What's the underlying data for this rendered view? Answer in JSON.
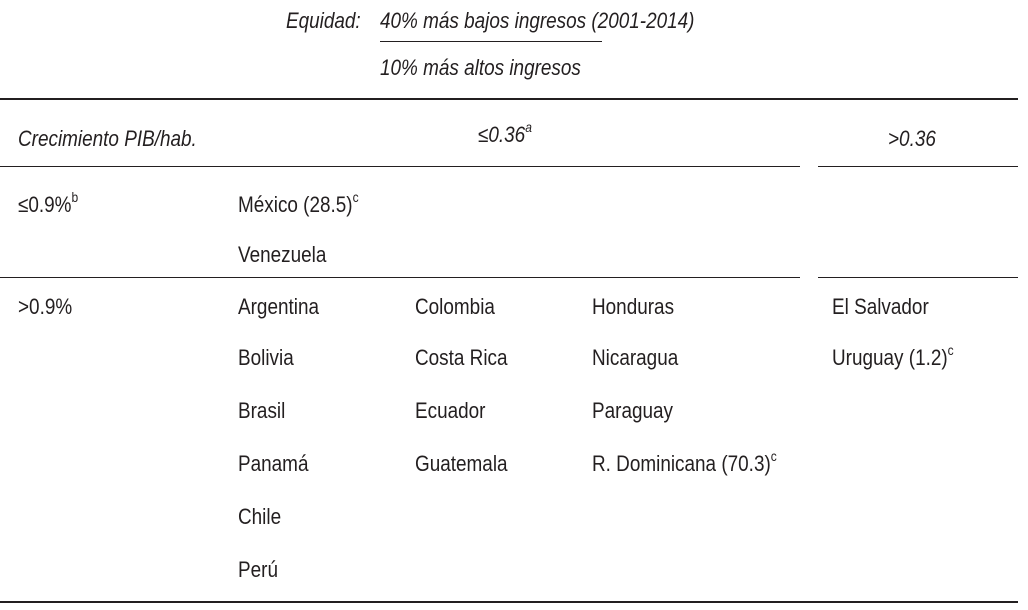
{
  "header": {
    "eq_label": "Equidad:",
    "numerator": "40% más bajos ingresos (2001-2014)",
    "denominator": "10% más altos ingresos"
  },
  "columns": {
    "row_header": "Crecimiento PIB/hab.",
    "col1": "≤0.36",
    "col1_note": "a",
    "col2": ">0.36"
  },
  "rows": [
    {
      "label": "≤0.9%",
      "label_note": "b",
      "low": [
        {
          "name": "México (28.5)",
          "note": "c"
        },
        {
          "name": "Venezuela",
          "note": ""
        }
      ],
      "high": []
    },
    {
      "label": ">0.9%",
      "label_note": "",
      "low_col_a": [
        "Argentina",
        "Bolivia",
        "Brasil",
        "Panamá",
        "Chile",
        "Perú"
      ],
      "low_col_b": [
        "Colombia",
        "Costa Rica",
        "Ecuador",
        "Guatemala"
      ],
      "low_col_c": [
        {
          "name": "Honduras",
          "note": ""
        },
        {
          "name": "Nicaragua",
          "note": ""
        },
        {
          "name": "Paraguay",
          "note": ""
        },
        {
          "name": "R. Dominicana (70.3)",
          "note": "c"
        }
      ],
      "high": [
        {
          "name": "El Salvador",
          "note": ""
        },
        {
          "name": "Uruguay (1.2)",
          "note": "c"
        }
      ]
    }
  ]
}
